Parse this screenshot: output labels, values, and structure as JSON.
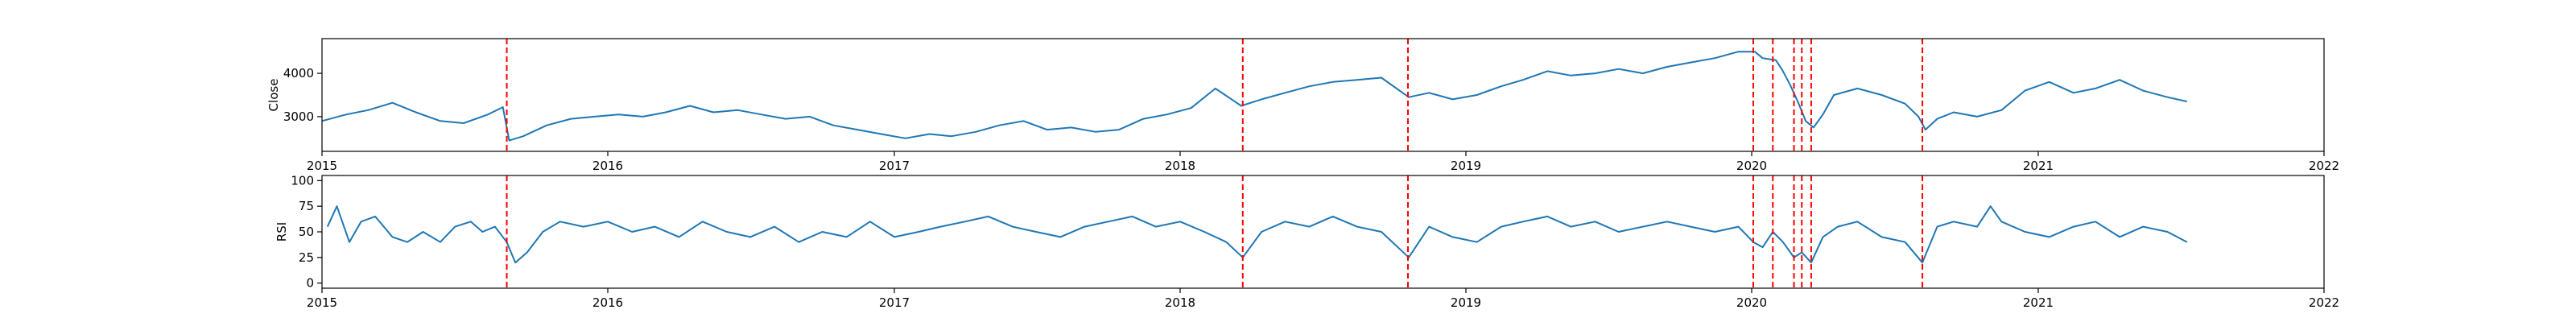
{
  "chart_data": [
    {
      "type": "line",
      "xlabel": "",
      "ylabel": "Close",
      "xlim": [
        "2015-01-01",
        "2022-01-01"
      ],
      "ylim": [
        2200,
        4800
      ],
      "yticks": [
        3000,
        4000
      ],
      "xticks": [
        "2015-01-01",
        "2016-01-01",
        "2017-01-01",
        "2018-01-01",
        "2019-01-01",
        "2020-01-01",
        "2021-01-01",
        "2022-01-01"
      ],
      "xtick_labels": [
        "2015",
        "2016",
        "2017",
        "2018",
        "2019",
        "2020",
        "2021",
        "2022"
      ],
      "line_color": "#1f77b4",
      "series": [
        {
          "x": [
            "2015-01-01",
            "2015-02-01",
            "2015-03-01",
            "2015-04-01",
            "2015-05-01",
            "2015-06-01",
            "2015-07-01",
            "2015-08-01",
            "2015-08-20",
            "2015-08-28",
            "2015-09-15",
            "2015-10-15",
            "2015-11-15",
            "2015-12-15",
            "2016-01-15",
            "2016-02-15",
            "2016-03-15",
            "2016-04-15",
            "2016-05-15",
            "2016-06-15",
            "2016-07-15",
            "2016-08-15",
            "2016-09-15",
            "2016-10-15",
            "2016-11-15",
            "2016-12-15",
            "2017-01-15",
            "2017-02-15",
            "2017-03-15",
            "2017-04-15",
            "2017-05-15",
            "2017-06-15",
            "2017-07-15",
            "2017-08-15",
            "2017-09-15",
            "2017-10-15",
            "2017-11-15",
            "2017-12-15",
            "2018-01-15",
            "2018-02-15",
            "2018-03-20",
            "2018-04-15",
            "2018-05-15",
            "2018-06-15",
            "2018-07-15",
            "2018-08-15",
            "2018-09-15",
            "2018-10-20",
            "2018-11-15",
            "2018-12-15",
            "2019-01-15",
            "2019-02-15",
            "2019-03-15",
            "2019-04-15",
            "2019-05-15",
            "2019-06-15",
            "2019-07-15",
            "2019-08-15",
            "2019-09-15",
            "2019-10-15",
            "2019-11-15",
            "2019-12-15",
            "2020-01-05",
            "2020-01-15",
            "2020-02-01",
            "2020-02-10",
            "2020-02-20",
            "2020-03-01",
            "2020-03-10",
            "2020-03-20",
            "2020-04-01",
            "2020-04-15",
            "2020-05-15",
            "2020-06-15",
            "2020-07-15",
            "2020-08-01",
            "2020-08-10",
            "2020-08-25",
            "2020-09-15",
            "2020-10-15",
            "2020-11-15",
            "2020-12-15",
            "2021-01-15",
            "2021-02-15",
            "2021-03-15",
            "2021-04-15",
            "2021-05-15",
            "2021-06-15",
            "2021-07-10"
          ],
          "values": [
            2900,
            3050,
            3150,
            3320,
            3100,
            2900,
            2850,
            3050,
            3220,
            2450,
            2550,
            2800,
            2950,
            3000,
            3050,
            3000,
            3100,
            3250,
            3100,
            3150,
            3050,
            2950,
            3000,
            2800,
            2700,
            2600,
            2500,
            2600,
            2550,
            2650,
            2800,
            2900,
            2700,
            2750,
            2650,
            2700,
            2950,
            3050,
            3200,
            3650,
            3250,
            3400,
            3550,
            3700,
            3800,
            3850,
            3900,
            3450,
            3550,
            3400,
            3500,
            3700,
            3850,
            4050,
            3950,
            4000,
            4100,
            4000,
            4150,
            4250,
            4350,
            4500,
            4500,
            4350,
            4300,
            4050,
            3700,
            3300,
            2900,
            2750,
            3050,
            3500,
            3650,
            3500,
            3300,
            3000,
            2700,
            2950,
            3100,
            3000,
            3150,
            3600,
            3800,
            3550,
            3650,
            3850,
            3600,
            3450,
            3350
          ]
        }
      ],
      "event_lines": [
        "2015-08-25",
        "2018-03-22",
        "2018-10-19",
        "2020-01-03",
        "2020-01-28",
        "2020-02-24",
        "2020-03-05",
        "2020-03-17",
        "2020-08-06"
      ],
      "event_line_color": "#ff0000"
    },
    {
      "type": "line",
      "xlabel": "",
      "ylabel": "RSI",
      "xlim": [
        "2015-01-01",
        "2022-01-01"
      ],
      "ylim": [
        -5,
        105
      ],
      "yticks": [
        0,
        25,
        50,
        75,
        100
      ],
      "xticks": [
        "2015-01-01",
        "2016-01-01",
        "2017-01-01",
        "2018-01-01",
        "2019-01-01",
        "2020-01-01",
        "2021-01-01",
        "2022-01-01"
      ],
      "xtick_labels": [
        "2015",
        "2016",
        "2017",
        "2018",
        "2019",
        "2020",
        "2021",
        "2022"
      ],
      "line_color": "#1f77b4",
      "series": [
        {
          "x": [
            "2015-01-08",
            "2015-01-20",
            "2015-02-05",
            "2015-02-20",
            "2015-03-10",
            "2015-04-01",
            "2015-04-20",
            "2015-05-10",
            "2015-06-01",
            "2015-06-20",
            "2015-07-10",
            "2015-07-25",
            "2015-08-10",
            "2015-08-25",
            "2015-09-05",
            "2015-09-20",
            "2015-10-10",
            "2015-11-01",
            "2015-12-01",
            "2016-01-01",
            "2016-02-01",
            "2016-03-01",
            "2016-04-01",
            "2016-05-01",
            "2016-06-01",
            "2016-07-01",
            "2016-08-01",
            "2016-09-01",
            "2016-10-01",
            "2016-11-01",
            "2016-12-01",
            "2017-01-01",
            "2017-02-01",
            "2017-03-01",
            "2017-04-01",
            "2017-05-01",
            "2017-06-01",
            "2017-07-01",
            "2017-08-01",
            "2017-09-01",
            "2017-10-01",
            "2017-11-01",
            "2017-12-01",
            "2018-01-01",
            "2018-02-01",
            "2018-03-01",
            "2018-03-22",
            "2018-04-15",
            "2018-05-15",
            "2018-06-15",
            "2018-07-15",
            "2018-08-15",
            "2018-09-15",
            "2018-10-20",
            "2018-11-15",
            "2018-12-15",
            "2019-01-15",
            "2019-02-15",
            "2019-03-15",
            "2019-04-15",
            "2019-05-15",
            "2019-06-15",
            "2019-07-15",
            "2019-08-15",
            "2019-09-15",
            "2019-10-15",
            "2019-11-15",
            "2019-12-15",
            "2020-01-03",
            "2020-01-15",
            "2020-01-28",
            "2020-02-10",
            "2020-02-24",
            "2020-03-05",
            "2020-03-17",
            "2020-04-01",
            "2020-04-20",
            "2020-05-15",
            "2020-06-15",
            "2020-07-15",
            "2020-08-06",
            "2020-08-25",
            "2020-09-15",
            "2020-10-15",
            "2020-11-01",
            "2020-11-15",
            "2020-12-15",
            "2021-01-15",
            "2021-02-15",
            "2021-03-15",
            "2021-04-15",
            "2021-05-15",
            "2021-06-15",
            "2021-07-10"
          ],
          "values": [
            55,
            75,
            40,
            60,
            65,
            45,
            40,
            50,
            40,
            55,
            60,
            50,
            55,
            40,
            20,
            30,
            50,
            60,
            55,
            60,
            50,
            55,
            45,
            60,
            50,
            45,
            55,
            40,
            50,
            45,
            60,
            45,
            50,
            55,
            60,
            65,
            55,
            50,
            45,
            55,
            60,
            65,
            55,
            60,
            50,
            40,
            25,
            50,
            60,
            55,
            65,
            55,
            50,
            25,
            55,
            45,
            40,
            55,
            60,
            65,
            55,
            60,
            50,
            55,
            60,
            55,
            50,
            55,
            40,
            35,
            50,
            40,
            25,
            30,
            20,
            45,
            55,
            60,
            45,
            40,
            20,
            55,
            60,
            55,
            75,
            60,
            50,
            45,
            55,
            60,
            45,
            55,
            50,
            40
          ]
        }
      ],
      "event_lines": [
        "2015-08-25",
        "2018-03-22",
        "2018-10-19",
        "2020-01-03",
        "2020-01-28",
        "2020-02-24",
        "2020-03-05",
        "2020-03-17",
        "2020-08-06"
      ],
      "event_line_color": "#ff0000"
    }
  ]
}
